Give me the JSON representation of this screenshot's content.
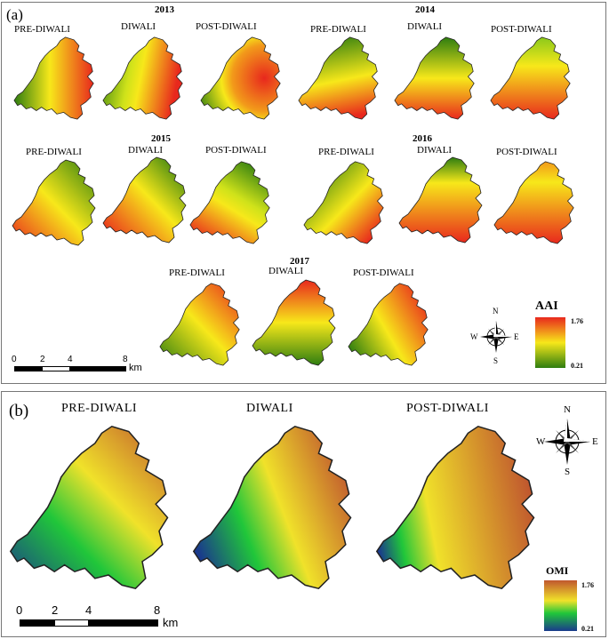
{
  "panel_a": {
    "label": "(a)",
    "groups": [
      {
        "year": "2013",
        "labels": [
          "PRE-DIWALI",
          "DIWALI",
          "POST-DIWALI"
        ]
      },
      {
        "year": "2014",
        "labels": [
          "PRE-DIWALI",
          "DIWALI",
          "POST-DIWALI"
        ]
      },
      {
        "year": "2015",
        "labels": [
          "PRE-DIWALI",
          "DIWALI",
          "POST-DIWALI"
        ]
      },
      {
        "year": "2016",
        "labels": [
          "PRE-DIWALI",
          "DIWALI",
          "POST-DIWALI"
        ]
      },
      {
        "year": "2017",
        "labels": [
          "PRE-DIWALI",
          "DIWALI",
          "POST-DIWALI"
        ]
      }
    ],
    "legend": {
      "title": "AAI",
      "max": "1.76",
      "min": "0.21",
      "colors": [
        "#e8281d",
        "#f7e81a",
        "#2e7d10"
      ]
    },
    "scale_bar": {
      "ticks": [
        "0",
        "2",
        "4",
        "8"
      ],
      "unit": "km"
    },
    "compass": {
      "n": "N",
      "s": "S",
      "e": "E",
      "w": "W"
    }
  },
  "panel_b": {
    "label": "(b)",
    "labels": [
      "PRE-DIWALI",
      "DIWALI",
      "POST-DIWALI"
    ],
    "legend": {
      "title": "OMI",
      "max": "1.76",
      "min": "0.21",
      "colors": [
        "#c0572e",
        "#f0e22a",
        "#20c63a",
        "#1a3a8c"
      ]
    },
    "scale_bar": {
      "ticks": [
        "0",
        "2",
        "4",
        "8"
      ],
      "unit": "km"
    },
    "compass": {
      "n": "N",
      "s": "S",
      "e": "E",
      "w": "W"
    }
  }
}
